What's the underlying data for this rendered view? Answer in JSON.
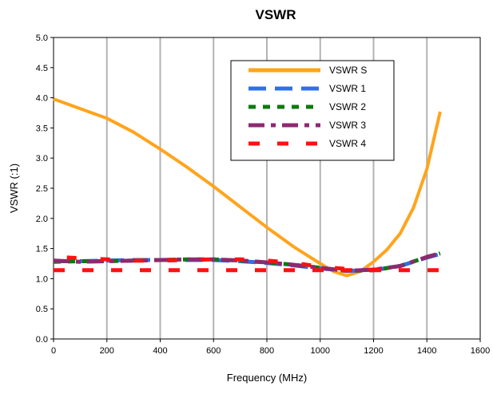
{
  "chart_data": {
    "type": "line",
    "title": "VSWR",
    "xlabel": "Frequency (MHz)",
    "ylabel": "VSWR (:1)",
    "xlim": [
      0,
      1600
    ],
    "ylim": [
      0,
      5.0
    ],
    "x_ticks": [
      0,
      200,
      400,
      600,
      800,
      1000,
      1200,
      1400,
      1600
    ],
    "y_ticks": [
      "0.0",
      "0.5",
      "1.0",
      "1.5",
      "2.0",
      "2.5",
      "3.0",
      "3.5",
      "4.0",
      "4.5",
      "5.0"
    ],
    "grid": "vertical",
    "legend_position": "top-right",
    "series": [
      {
        "name": "VSWR S",
        "color": "#ffa41c",
        "dash": "solid",
        "x": [
          0,
          100,
          200,
          300,
          400,
          500,
          600,
          700,
          800,
          900,
          1000,
          1050,
          1100,
          1150,
          1200,
          1250,
          1300,
          1350,
          1400,
          1450
        ],
        "y": [
          3.98,
          3.82,
          3.66,
          3.43,
          3.15,
          2.85,
          2.53,
          2.19,
          1.85,
          1.53,
          1.25,
          1.12,
          1.05,
          1.12,
          1.28,
          1.48,
          1.75,
          2.18,
          2.82,
          3.77
        ]
      },
      {
        "name": "VSWR 1",
        "color": "#2f6fe8",
        "dash": "long",
        "x": [
          0,
          100,
          200,
          300,
          400,
          500,
          600,
          700,
          800,
          900,
          1000,
          1100,
          1200,
          1300,
          1400,
          1450
        ],
        "y": [
          1.29,
          1.29,
          1.3,
          1.31,
          1.31,
          1.31,
          1.31,
          1.29,
          1.26,
          1.22,
          1.17,
          1.13,
          1.14,
          1.21,
          1.35,
          1.41
        ]
      },
      {
        "name": "VSWR 2",
        "color": "#0d7a0d",
        "dash": "short",
        "x": [
          0,
          100,
          200,
          300,
          400,
          500,
          600,
          700,
          800,
          900,
          1000,
          1100,
          1200,
          1300,
          1400,
          1450
        ],
        "y": [
          1.28,
          1.29,
          1.29,
          1.3,
          1.31,
          1.32,
          1.32,
          1.3,
          1.27,
          1.23,
          1.18,
          1.13,
          1.14,
          1.21,
          1.36,
          1.42
        ]
      },
      {
        "name": "VSWR 3",
        "color": "#8d2a70",
        "dash": "dashdot",
        "x": [
          0,
          100,
          200,
          300,
          400,
          500,
          600,
          700,
          800,
          900,
          1000,
          1100,
          1200,
          1300,
          1400,
          1450
        ],
        "y": [
          1.3,
          1.28,
          1.29,
          1.3,
          1.31,
          1.32,
          1.32,
          1.3,
          1.27,
          1.23,
          1.18,
          1.13,
          1.15,
          1.21,
          1.36,
          1.42
        ]
      },
      {
        "name": "VSWR 4",
        "color": "#ff1010",
        "dash": "mixed",
        "x": [
          0,
          30,
          60,
          100,
          200,
          300,
          400,
          500,
          600,
          700,
          800,
          900,
          1000,
          1100,
          1200,
          1300,
          1400,
          1450
        ],
        "y": [
          1.14,
          1.14,
          1.14,
          1.14,
          1.14,
          1.14,
          1.14,
          1.14,
          1.14,
          1.14,
          1.14,
          1.14,
          1.14,
          1.14,
          1.14,
          1.14,
          1.14,
          1.14
        ]
      },
      {
        "name": "",
        "color": "#ff1010",
        "dash": "marks",
        "x": [
          50,
          300,
          400,
          600,
          700,
          800,
          900,
          1000,
          1150,
          1250
        ],
        "y": [
          1.35,
          1.3,
          1.3,
          1.32,
          1.32,
          1.3,
          1.26,
          1.2,
          1.14,
          1.16
        ]
      }
    ]
  }
}
